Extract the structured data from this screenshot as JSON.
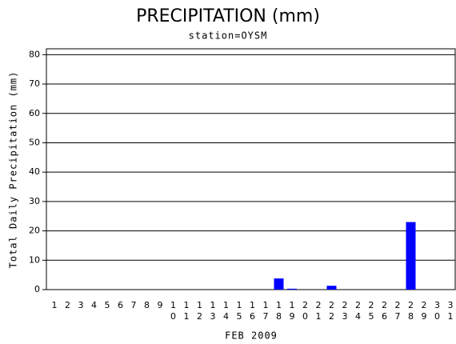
{
  "chart_data": {
    "type": "bar",
    "title": "PRECIPITATION (mm)",
    "subtitle": "station=OYSM",
    "x_label": "FEB 2009",
    "y_label": "Total Daily Precipitation (mm)",
    "categories": [
      "1",
      "2",
      "3",
      "4",
      "5",
      "6",
      "7",
      "8",
      "9",
      "10",
      "11",
      "12",
      "13",
      "14",
      "15",
      "16",
      "17",
      "18",
      "19",
      "20",
      "21",
      "22",
      "23",
      "24",
      "25",
      "26",
      "27",
      "28",
      "29",
      "30",
      "31"
    ],
    "values": [
      0,
      0,
      0,
      0,
      0,
      0,
      0,
      0,
      0,
      0,
      0,
      0,
      0,
      0,
      0,
      0,
      0,
      3.8,
      0.3,
      0,
      0,
      1.3,
      0,
      0,
      0,
      0,
      0,
      23,
      null,
      null,
      null
    ],
    "color": "#0000ff",
    "ylim": [
      0,
      82
    ],
    "yticks": [
      0,
      10,
      20,
      30,
      40,
      50,
      60,
      70,
      80
    ],
    "grid": true
  }
}
